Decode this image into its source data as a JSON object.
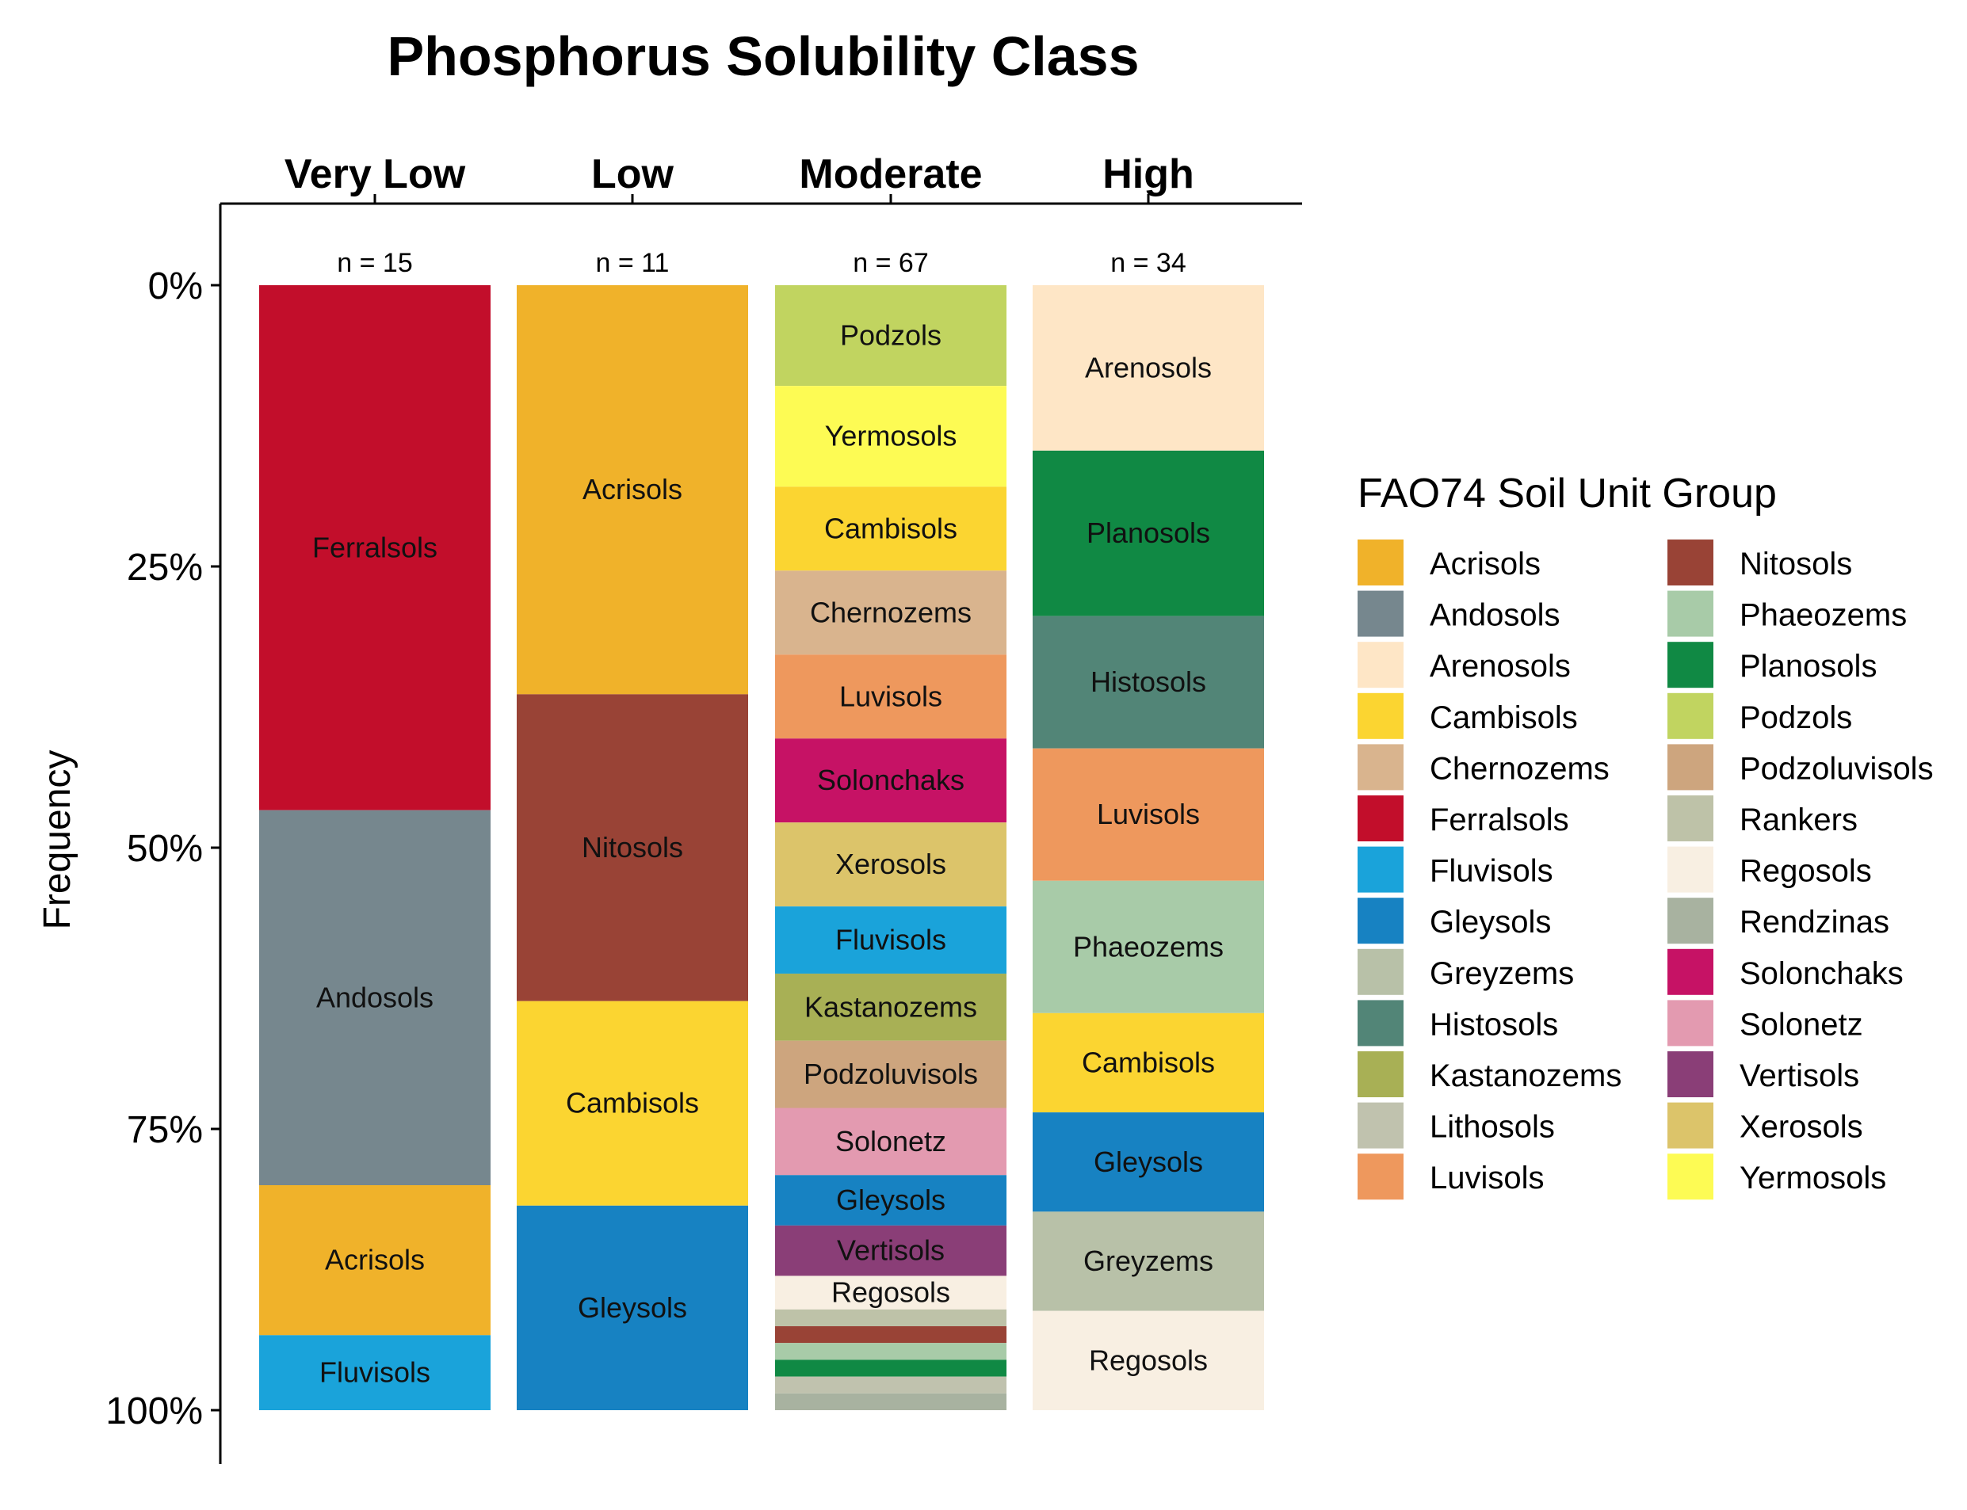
{
  "chart_data": {
    "type": "bar",
    "title": "Phosphorus Solubility Class",
    "ylabel": "Frequency",
    "ylim": [
      0,
      1
    ],
    "yticks": [
      {
        "value": 0,
        "label": "0%"
      },
      {
        "value": 0.25,
        "label": "25%"
      },
      {
        "value": 0.5,
        "label": "50%"
      },
      {
        "value": 0.75,
        "label": "75%"
      },
      {
        "value": 1,
        "label": "100%"
      }
    ],
    "y_direction": "top-down",
    "x_axis_position": "top",
    "legend": {
      "title": "FAO74 Soil Unit Group",
      "placement": "right",
      "columns": 2,
      "items": [
        {
          "name": "Acrisols",
          "color": "#F0B22A"
        },
        {
          "name": "Andosols",
          "color": "#76878E"
        },
        {
          "name": "Arenosols",
          "color": "#FEE6C6"
        },
        {
          "name": "Cambisols",
          "color": "#FBD531"
        },
        {
          "name": "Chernozems",
          "color": "#D9B48E"
        },
        {
          "name": "Ferralsols",
          "color": "#C20E2B"
        },
        {
          "name": "Fluvisols",
          "color": "#1AA3DA"
        },
        {
          "name": "Gleysols",
          "color": "#1782C2"
        },
        {
          "name": "Greyzems",
          "color": "#B8C1A8"
        },
        {
          "name": "Histosols",
          "color": "#528577"
        },
        {
          "name": "Kastanozems",
          "color": "#A8B055"
        },
        {
          "name": "Lithosols",
          "color": "#C0C2AE"
        },
        {
          "name": "Luvisols",
          "color": "#EE985D"
        },
        {
          "name": "Nitosols",
          "color": "#994336"
        },
        {
          "name": "Phaeozems",
          "color": "#A8CBA8"
        },
        {
          "name": "Planosols",
          "color": "#108944"
        },
        {
          "name": "Podzols",
          "color": "#C1D460"
        },
        {
          "name": "Podzoluvisols",
          "color": "#CDA57E"
        },
        {
          "name": "Rankers",
          "color": "#BEC2A8"
        },
        {
          "name": "Regosols",
          "color": "#F8EFE2"
        },
        {
          "name": "Rendzinas",
          "color": "#A8B2A0"
        },
        {
          "name": "Solonchaks",
          "color": "#C61265"
        },
        {
          "name": "Solonetz",
          "color": "#E39AB0"
        },
        {
          "name": "Vertisols",
          "color": "#8A3E77"
        },
        {
          "name": "Xerosols",
          "color": "#DCC46A"
        },
        {
          "name": "Yermosols",
          "color": "#FDFB54"
        }
      ]
    },
    "categories": [
      {
        "name": "Very Low",
        "n_label": "n = 15",
        "segments": [
          {
            "name": "Ferralsols",
            "value": 7,
            "label": "Ferralsols"
          },
          {
            "name": "Andosols",
            "value": 5,
            "label": "Andosols"
          },
          {
            "name": "Acrisols",
            "value": 2,
            "label": "Acrisols"
          },
          {
            "name": "Fluvisols",
            "value": 1,
            "label": "Fluvisols"
          }
        ]
      },
      {
        "name": "Low",
        "n_label": "n = 11",
        "segments": [
          {
            "name": "Acrisols",
            "value": 4,
            "label": "Acrisols"
          },
          {
            "name": "Nitosols",
            "value": 3,
            "label": "Nitosols"
          },
          {
            "name": "Cambisols",
            "value": 2,
            "label": "Cambisols"
          },
          {
            "name": "Gleysols",
            "value": 2,
            "label": "Gleysols"
          }
        ]
      },
      {
        "name": "Moderate",
        "n_label": "n = 67",
        "segments": [
          {
            "name": "Podzols",
            "value": 6,
            "label": "Podzols"
          },
          {
            "name": "Yermosols",
            "value": 6,
            "label": "Yermosols"
          },
          {
            "name": "Cambisols",
            "value": 5,
            "label": "Cambisols"
          },
          {
            "name": "Chernozems",
            "value": 5,
            "label": "Chernozems"
          },
          {
            "name": "Luvisols",
            "value": 5,
            "label": "Luvisols"
          },
          {
            "name": "Solonchaks",
            "value": 5,
            "label": "Solonchaks"
          },
          {
            "name": "Xerosols",
            "value": 5,
            "label": "Xerosols"
          },
          {
            "name": "Fluvisols",
            "value": 4,
            "label": "Fluvisols"
          },
          {
            "name": "Kastanozems",
            "value": 4,
            "label": "Kastanozems"
          },
          {
            "name": "Podzoluvisols",
            "value": 4,
            "label": "Podzoluvisols"
          },
          {
            "name": "Solonetz",
            "value": 4,
            "label": "Solonetz"
          },
          {
            "name": "Gleysols",
            "value": 3,
            "label": "Gleysols"
          },
          {
            "name": "Vertisols",
            "value": 3,
            "label": "Vertisols"
          },
          {
            "name": "Regosols",
            "value": 2,
            "label": "Regosols"
          },
          {
            "name": "Rankers",
            "value": 1,
            "label": ""
          },
          {
            "name": "Nitosols",
            "value": 1,
            "label": ""
          },
          {
            "name": "Phaeozems",
            "value": 1,
            "label": ""
          },
          {
            "name": "Planosols",
            "value": 1,
            "label": ""
          },
          {
            "name": "Lithosols",
            "value": 1,
            "label": ""
          },
          {
            "name": "Rendzinas",
            "value": 1,
            "label": ""
          }
        ]
      },
      {
        "name": "High",
        "n_label": "n = 34",
        "segments": [
          {
            "name": "Arenosols",
            "value": 5,
            "label": "Arenosols"
          },
          {
            "name": "Planosols",
            "value": 5,
            "label": "Planosols"
          },
          {
            "name": "Histosols",
            "value": 4,
            "label": "Histosols"
          },
          {
            "name": "Luvisols",
            "value": 4,
            "label": "Luvisols"
          },
          {
            "name": "Phaeozems",
            "value": 4,
            "label": "Phaeozems"
          },
          {
            "name": "Cambisols",
            "value": 3,
            "label": "Cambisols"
          },
          {
            "name": "Gleysols",
            "value": 3,
            "label": "Gleysols"
          },
          {
            "name": "Greyzems",
            "value": 3,
            "label": "Greyzems"
          },
          {
            "name": "Regosols",
            "value": 3,
            "label": "Regosols"
          }
        ]
      }
    ]
  }
}
